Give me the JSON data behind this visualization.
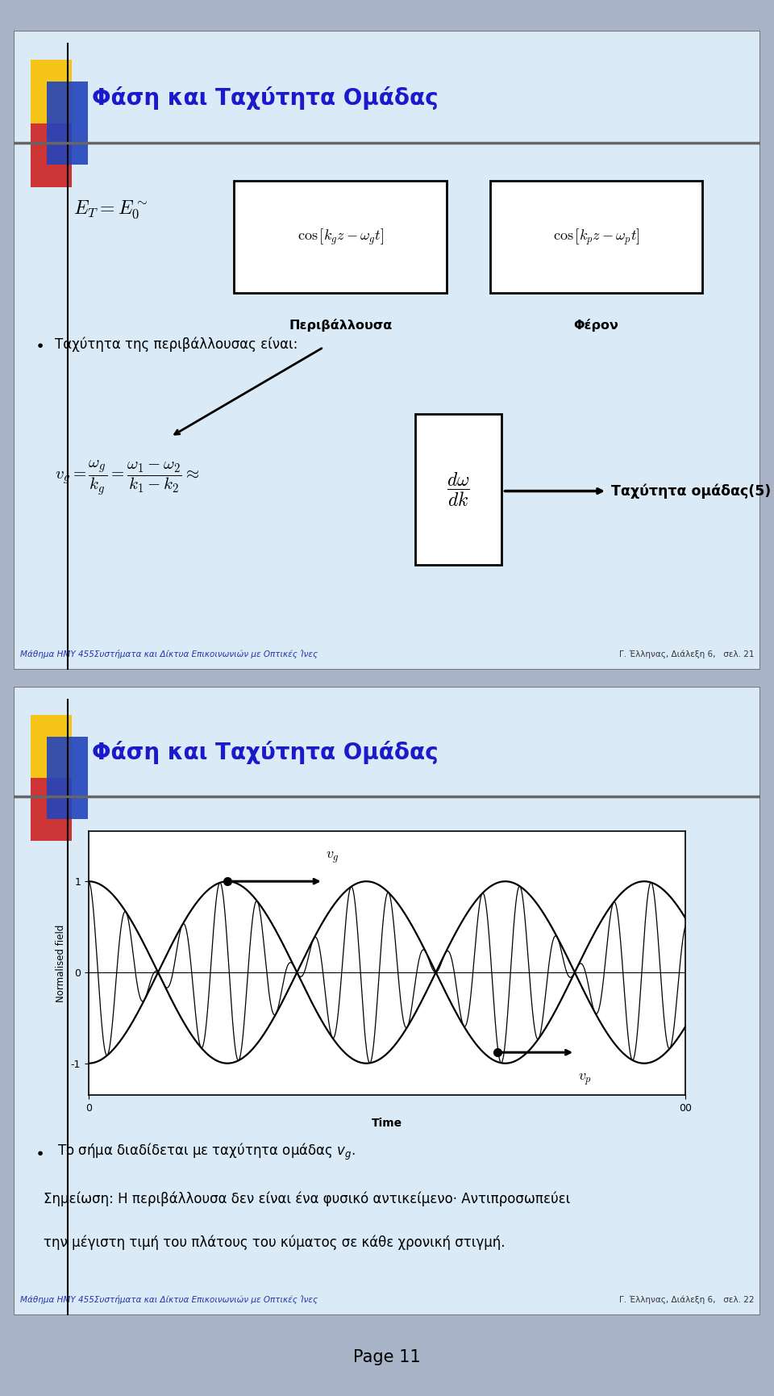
{
  "slide1_title": "Φάση και Ταχύτητα Ομάδας",
  "slide1_bg": "#daeaf7",
  "slide1_bullet": "Ταχύτητα της περιβάλλουσας είναι:",
  "slide1_Perivalloysa": "Περιβάλλουσα",
  "slide1_Feron": "Φέρον",
  "slide1_arrow_label": "Ταχύτητα ομάδας(5)",
  "slide1_footer_left": "Μάθημα ΗΜΥ 455Συστήματα και Δίκτυα Επικοινωνιών με Οπτικές Ίνες",
  "slide1_footer_right": "Γ. Έλληνας, Διάλεξη 6,   σελ. 21",
  "slide2_title": "Φάση και Ταχύτητα Ομάδας",
  "slide2_bg": "#daeaf7",
  "slide2_ylabel": "Normalised field",
  "slide2_xlabel": "Time",
  "slide2_bullet1": "Το σήμα διαδίδεται με ταχύτητα ομάδας $v_g$.",
  "slide2_note": "Σημείωση: Η περιβάλλουσα δεν είναι ένα φυσικό αντικείμενο· Αντιπροσωπεύει",
  "slide2_note2": "την μέγιστη τιμή του πλάτους του κύματος σε κάθε χρονική στιγμή.",
  "slide2_footer_left": "Μάθημα ΗΜΥ 455Συστήματα και Δίκτυα Επικοινωνιών με Οπτικές Ίνες",
  "slide2_footer_right": "Γ. Έλληνας, Διάλεξη 6,   σελ. 22",
  "title_color": "#1a1acc",
  "title_fontsize": 20,
  "body_fontsize": 12,
  "footer_fontsize": 7.5,
  "page_label": "Page 11",
  "logo_yellow": "#f5c518",
  "logo_red": "#cc2020",
  "logo_blue": "#2244bb",
  "outer_bg": "#aab4c8",
  "border_color": "#777777"
}
